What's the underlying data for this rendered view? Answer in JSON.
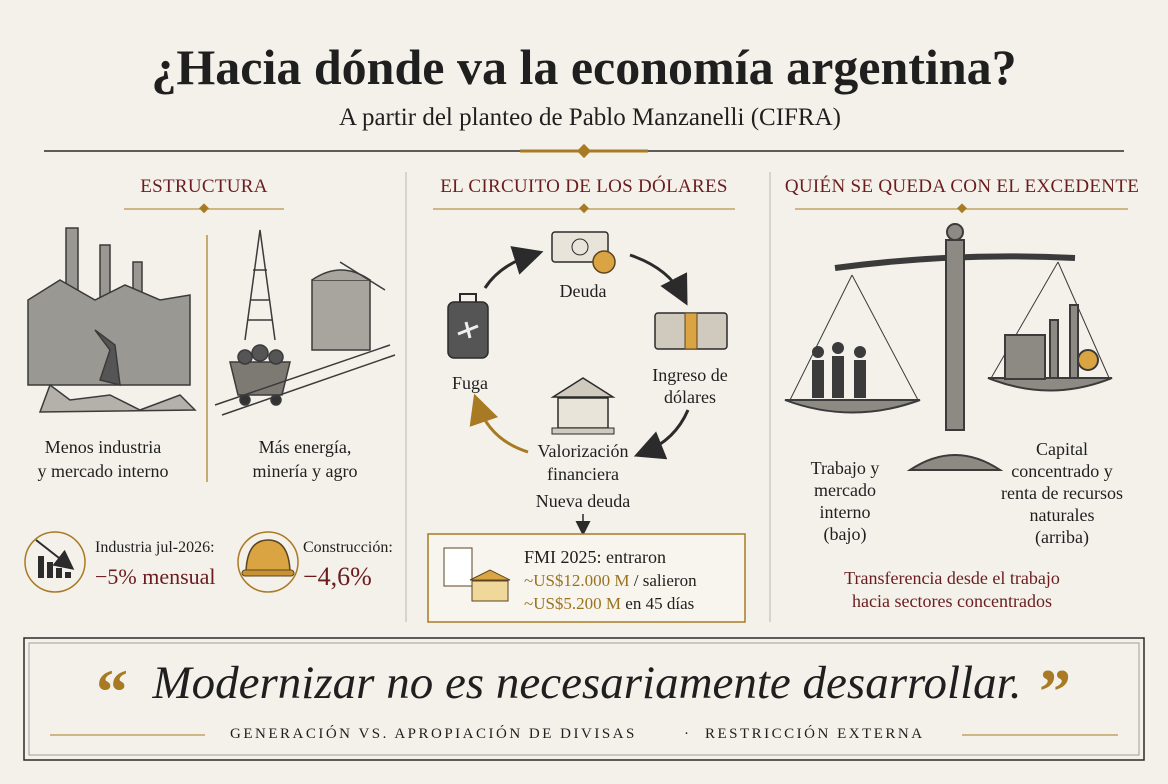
{
  "header": {
    "title": "¿Hacia dónde va la economía argentina?",
    "subtitle": "A partir del planteo de Pablo Manzanelli (CIFRA)"
  },
  "estructura": {
    "title": "ESTRUCTURA",
    "left_caption": [
      "Menos industria",
      "y mercado interno"
    ],
    "right_caption": [
      "Más energía,",
      "minería y agro"
    ],
    "stats": [
      {
        "label": "Industria jul-2026:",
        "value": "−5% mensual"
      },
      {
        "label": "Construcción:",
        "value": "−4,6%"
      }
    ]
  },
  "circuito": {
    "title": "EL CIRCUITO DE LOS DÓLARES",
    "nodes": [
      {
        "label": [
          "Deuda"
        ]
      },
      {
        "label": [
          "Ingreso de",
          "dólares"
        ]
      },
      {
        "label": [
          "Valorización",
          "financiera"
        ]
      },
      {
        "label": [
          "Fuga"
        ]
      }
    ],
    "next": "Nueva deuda",
    "fmi": {
      "line1": "FMI 2025: entraron",
      "in_amount": "~US$12.000 M",
      "in_rest": "/ salieron",
      "out_amount": "~US$5.200 M",
      "out_rest": "en 45 días"
    }
  },
  "excedente": {
    "title": "QUIÉN SE QUEDA CON EL EXCEDENTE",
    "left_label": [
      "Trabajo y",
      "mercado",
      "interno",
      "(bajo)"
    ],
    "right_label": [
      "Capital",
      "concentrado y",
      "renta de recursos",
      "naturales",
      "(arriba)"
    ],
    "conclusion": [
      "Transferencia desde el trabajo",
      "hacia sectores concentrados"
    ]
  },
  "quote": {
    "open_mark": "“",
    "text": "Modernizar no es necesariamente desarrollar.",
    "close_mark": "”",
    "keywords": [
      "GENERACIÓN VS. APROPIACIÓN DE DIVISAS",
      "·",
      "RESTRICCIÓN EXTERNA"
    ]
  }
}
